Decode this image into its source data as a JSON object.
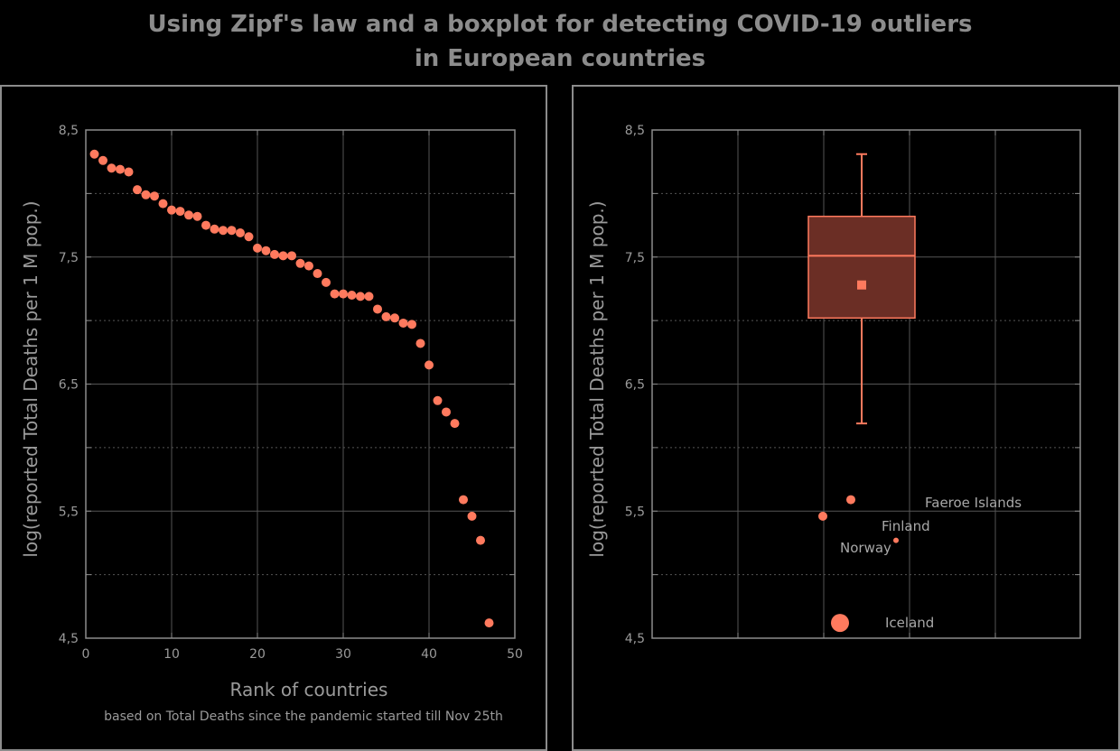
{
  "title": {
    "line1": "Using Zipf's law and a boxplot for detecting COVID-19 outliers",
    "line2": "in European countries"
  },
  "colors": {
    "accent": "#ff7a5e",
    "box_fill": "#6b2e25",
    "grid": "#555555",
    "frame": "#8c8c8c"
  },
  "chart_data": [
    {
      "type": "scatter",
      "xlabel": "Rank of countries",
      "ylabel": "log(reported Total Deaths per 1 M pop.)",
      "note": "based on Total Deaths since the pandemic started till Nov 25th",
      "xlim": [
        0,
        50
      ],
      "ylim": [
        4.5,
        8.5
      ],
      "xticks": [
        0,
        10,
        20,
        30,
        40,
        50
      ],
      "xtick_labels": [
        "0",
        "10",
        "20",
        "30",
        "40",
        "50"
      ],
      "yticks": [
        4.5,
        5.5,
        6.5,
        7.5,
        8.5
      ],
      "ytick_labels": [
        "4,5",
        "5,5",
        "6,5",
        "7,5",
        "8,5"
      ],
      "grid": true,
      "x": [
        1,
        2,
        3,
        4,
        5,
        6,
        7,
        8,
        9,
        10,
        11,
        12,
        13,
        14,
        15,
        16,
        17,
        18,
        19,
        20,
        21,
        22,
        23,
        24,
        25,
        26,
        27,
        28,
        29,
        30,
        31,
        32,
        33,
        34,
        35,
        36,
        37,
        38,
        39,
        40,
        41,
        42,
        43,
        44,
        45,
        46,
        47
      ],
      "y": [
        8.31,
        8.26,
        8.2,
        8.19,
        8.17,
        8.03,
        7.99,
        7.98,
        7.92,
        7.87,
        7.86,
        7.83,
        7.82,
        7.75,
        7.72,
        7.71,
        7.71,
        7.69,
        7.66,
        7.57,
        7.55,
        7.52,
        7.51,
        7.51,
        7.45,
        7.43,
        7.37,
        7.3,
        7.21,
        7.21,
        7.2,
        7.19,
        7.19,
        7.09,
        7.03,
        7.02,
        6.98,
        6.97,
        6.82,
        6.65,
        6.37,
        6.28,
        6.19,
        5.59,
        5.46,
        5.27,
        4.62
      ]
    },
    {
      "type": "boxplot",
      "ylabel": "log(reported Total Deaths per 1 M pop.)",
      "ylim": [
        4.5,
        8.5
      ],
      "yticks": [
        4.5,
        5.5,
        6.5,
        7.5,
        8.5
      ],
      "ytick_labels": [
        "4,5",
        "5,5",
        "6,5",
        "7,5",
        "8,5"
      ],
      "grid": true,
      "whisker_high": 8.31,
      "q3": 7.82,
      "median": 7.51,
      "mean": 7.28,
      "q1": 7.02,
      "whisker_low": 6.19,
      "outliers": [
        {
          "label": "Faeroe Islands",
          "value": 5.59,
          "size": "small"
        },
        {
          "label": "Finland",
          "value": 5.46,
          "size": "small"
        },
        {
          "label": "Norway",
          "value": 5.27,
          "size": "tiny"
        },
        {
          "label": "Iceland",
          "value": 4.62,
          "size": "large"
        }
      ]
    }
  ]
}
